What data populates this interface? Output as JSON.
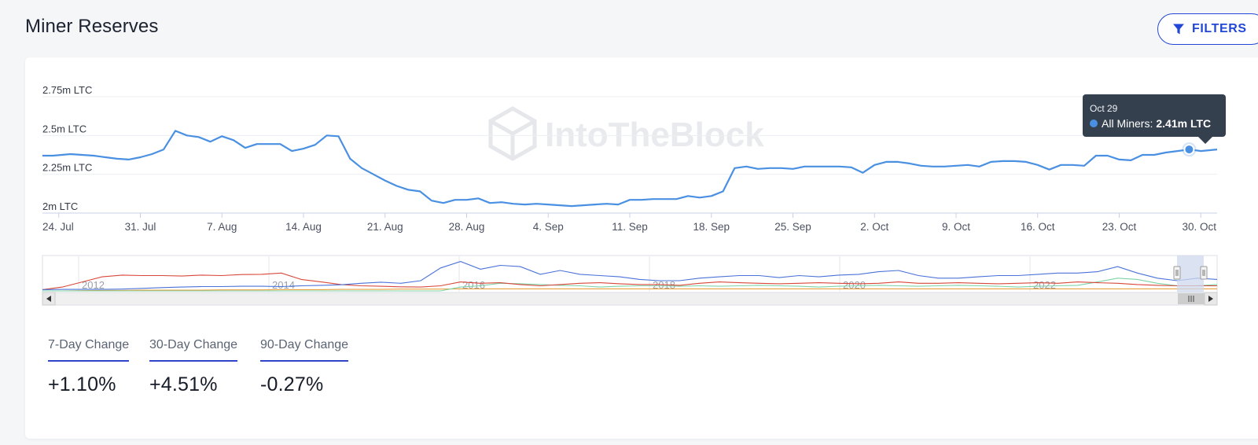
{
  "page": {
    "title": "Miner Reserves",
    "filters_label": "FILTERS",
    "watermark": "IntoTheBlock"
  },
  "colors": {
    "accent": "#2247d6",
    "series_main": "#4a90e2",
    "tooltip_bg": "#35404f",
    "stat_underline": "#2f44c9"
  },
  "chart_data": {
    "type": "line",
    "title": "Miner Reserves",
    "ylabel": "",
    "xlabel": "",
    "y_unit": "LTC",
    "ylim": [
      2.0,
      2.75
    ],
    "y_ticks": [
      {
        "value": 2.75,
        "label": "2.75m LTC"
      },
      {
        "value": 2.5,
        "label": "2.5m LTC"
      },
      {
        "value": 2.25,
        "label": "2.25m LTC"
      },
      {
        "value": 2.0,
        "label": "2m LTC"
      }
    ],
    "x_ticks": [
      {
        "day": 0,
        "label": "24. Jul"
      },
      {
        "day": 7,
        "label": "31. Jul"
      },
      {
        "day": 14,
        "label": "7. Aug"
      },
      {
        "day": 21,
        "label": "14. Aug"
      },
      {
        "day": 28,
        "label": "21. Aug"
      },
      {
        "day": 35,
        "label": "28. Aug"
      },
      {
        "day": 42,
        "label": "4. Sep"
      },
      {
        "day": 49,
        "label": "11. Sep"
      },
      {
        "day": 56,
        "label": "18. Sep"
      },
      {
        "day": 63,
        "label": "25. Sep"
      },
      {
        "day": 70,
        "label": "2. Oct"
      },
      {
        "day": 77,
        "label": "9. Oct"
      },
      {
        "day": 84,
        "label": "16. Oct"
      },
      {
        "day": 91,
        "label": "23. Oct"
      },
      {
        "day": 98,
        "label": "30. Oct"
      }
    ],
    "xlim_days": [
      -1.4,
      99.4
    ],
    "series": [
      {
        "name": "All Miners",
        "color": "#4a90e2",
        "days": [
          -1.4,
          -0.5,
          1,
          2,
          3,
          4,
          5,
          6,
          7,
          8,
          9,
          10,
          11,
          12,
          13,
          14,
          15,
          16,
          17,
          18,
          19,
          20,
          21,
          22,
          23,
          24,
          25,
          26,
          27,
          28,
          29,
          30,
          31,
          32,
          33,
          34,
          35,
          36,
          37,
          38,
          39,
          40,
          41,
          42,
          43,
          44,
          45,
          46,
          47,
          48,
          49,
          50,
          51,
          52,
          53,
          54,
          55,
          56,
          57,
          58,
          59,
          60,
          61,
          62,
          63,
          64,
          65,
          66,
          67,
          68,
          69,
          70,
          71,
          72,
          73,
          74,
          75,
          76,
          77,
          78,
          79,
          80,
          81,
          82,
          83,
          84,
          85,
          86,
          87,
          88,
          89,
          90,
          91,
          92,
          93,
          94,
          95,
          96,
          97,
          98,
          99.4
        ],
        "values": [
          2.37,
          2.37,
          2.38,
          2.375,
          2.37,
          2.36,
          2.35,
          2.345,
          2.36,
          2.38,
          2.41,
          2.53,
          2.5,
          2.49,
          2.46,
          2.495,
          2.47,
          2.42,
          2.445,
          2.445,
          2.445,
          2.4,
          2.415,
          2.44,
          2.5,
          2.495,
          2.35,
          2.29,
          2.25,
          2.21,
          2.175,
          2.15,
          2.14,
          2.08,
          2.065,
          2.085,
          2.085,
          2.095,
          2.065,
          2.07,
          2.06,
          2.055,
          2.06,
          2.055,
          2.05,
          2.045,
          2.05,
          2.055,
          2.06,
          2.055,
          2.085,
          2.085,
          2.09,
          2.09,
          2.09,
          2.11,
          2.1,
          2.11,
          2.14,
          2.29,
          2.3,
          2.285,
          2.29,
          2.29,
          2.285,
          2.3,
          2.3,
          2.3,
          2.3,
          2.295,
          2.26,
          2.31,
          2.33,
          2.33,
          2.32,
          2.305,
          2.3,
          2.3,
          2.305,
          2.31,
          2.3,
          2.33,
          2.335,
          2.335,
          2.33,
          2.31,
          2.28,
          2.31,
          2.31,
          2.305,
          2.37,
          2.37,
          2.345,
          2.34,
          2.375,
          2.375,
          2.39,
          2.4,
          2.41,
          2.4,
          2.41
        ]
      }
    ],
    "tooltip": {
      "date": "Oct 29",
      "series_label": "All Miners:",
      "value_label": "2.41m LTC",
      "day": 97,
      "value": 2.41
    },
    "navigator": {
      "year_labels": [
        "2012",
        "2014",
        "2016",
        "2018",
        "2020",
        "2022"
      ],
      "series": [
        {
          "name": "blue",
          "color": "#4a72d8",
          "values": [
            0.05,
            0.06,
            0.06,
            0.06,
            0.07,
            0.1,
            0.13,
            0.15,
            0.17,
            0.17,
            0.18,
            0.18,
            0.17,
            0.2,
            0.22,
            0.24,
            0.3,
            0.34,
            0.3,
            0.4,
            0.9,
            1.15,
            0.85,
            1.0,
            0.95,
            0.65,
            0.8,
            0.65,
            0.6,
            0.55,
            0.45,
            0.4,
            0.4,
            0.5,
            0.55,
            0.6,
            0.6,
            0.52,
            0.6,
            0.55,
            0.62,
            0.65,
            0.75,
            0.8,
            0.6,
            0.5,
            0.5,
            0.55,
            0.6,
            0.6,
            0.65,
            0.7,
            0.7,
            0.75,
            0.95,
            0.7,
            0.5,
            0.4,
            0.5,
            0.45
          ]
        },
        {
          "name": "red",
          "color": "#d8483a",
          "values": [
            0.05,
            0.15,
            0.35,
            0.55,
            0.62,
            0.6,
            0.6,
            0.58,
            0.62,
            0.6,
            0.64,
            0.65,
            0.7,
            0.45,
            0.35,
            0.25,
            0.2,
            0.18,
            0.16,
            0.15,
            0.2,
            0.35,
            0.3,
            0.32,
            0.25,
            0.2,
            0.25,
            0.3,
            0.32,
            0.28,
            0.25,
            0.25,
            0.22,
            0.3,
            0.35,
            0.32,
            0.3,
            0.28,
            0.3,
            0.32,
            0.3,
            0.28,
            0.3,
            0.35,
            0.3,
            0.3,
            0.32,
            0.3,
            0.28,
            0.3,
            0.32,
            0.3,
            0.35,
            0.32,
            0.3,
            0.25,
            0.22,
            0.2,
            0.2,
            0.2
          ]
        },
        {
          "name": "green",
          "color": "#7fd3a6",
          "values": [
            0,
            0,
            0,
            0,
            0,
            0,
            0,
            0,
            0,
            0,
            0,
            0,
            0,
            0,
            0,
            0,
            0,
            0,
            0,
            0,
            0,
            0.15,
            0.2,
            0.3,
            0.28,
            0.25,
            0.22,
            0.2,
            0.15,
            0.18,
            0.2,
            0.2,
            0.18,
            0.2,
            0.18,
            0.2,
            0.22,
            0.2,
            0.18,
            0.15,
            0.18,
            0.2,
            0.22,
            0.2,
            0.18,
            0.2,
            0.22,
            0.2,
            0.18,
            0.15,
            0.18,
            0.2,
            0.22,
            0.35,
            0.5,
            0.45,
            0.3,
            0.2,
            0.2,
            0.25
          ]
        },
        {
          "name": "orange",
          "color": "#e8a040",
          "values": [
            0,
            0,
            0.01,
            0.02,
            0.02,
            0.03,
            0.03,
            0.03,
            0.03,
            0.04,
            0.04,
            0.04,
            0.05,
            0.05,
            0.05,
            0.06,
            0.06,
            0.06,
            0.07,
            0.07,
            0.07,
            0.08,
            0.08,
            0.08,
            0.08,
            0.08,
            0.08,
            0.08,
            0.08,
            0.08,
            0.08,
            0.08,
            0.08,
            0.08,
            0.08,
            0.08,
            0.08,
            0.08,
            0.08,
            0.08,
            0.08,
            0.08,
            0.08,
            0.08,
            0.08,
            0.08,
            0.08,
            0.08,
            0.08,
            0.08,
            0.08,
            0.08,
            0.08,
            0.08,
            0.08,
            0.08,
            0.08,
            0.08,
            0.08,
            0.08
          ]
        }
      ]
    }
  },
  "stats": [
    {
      "label": "7-Day Change",
      "value": "+1.10%"
    },
    {
      "label": "30-Day Change",
      "value": "+4.51%"
    },
    {
      "label": "90-Day Change",
      "value": "-0.27%"
    }
  ]
}
